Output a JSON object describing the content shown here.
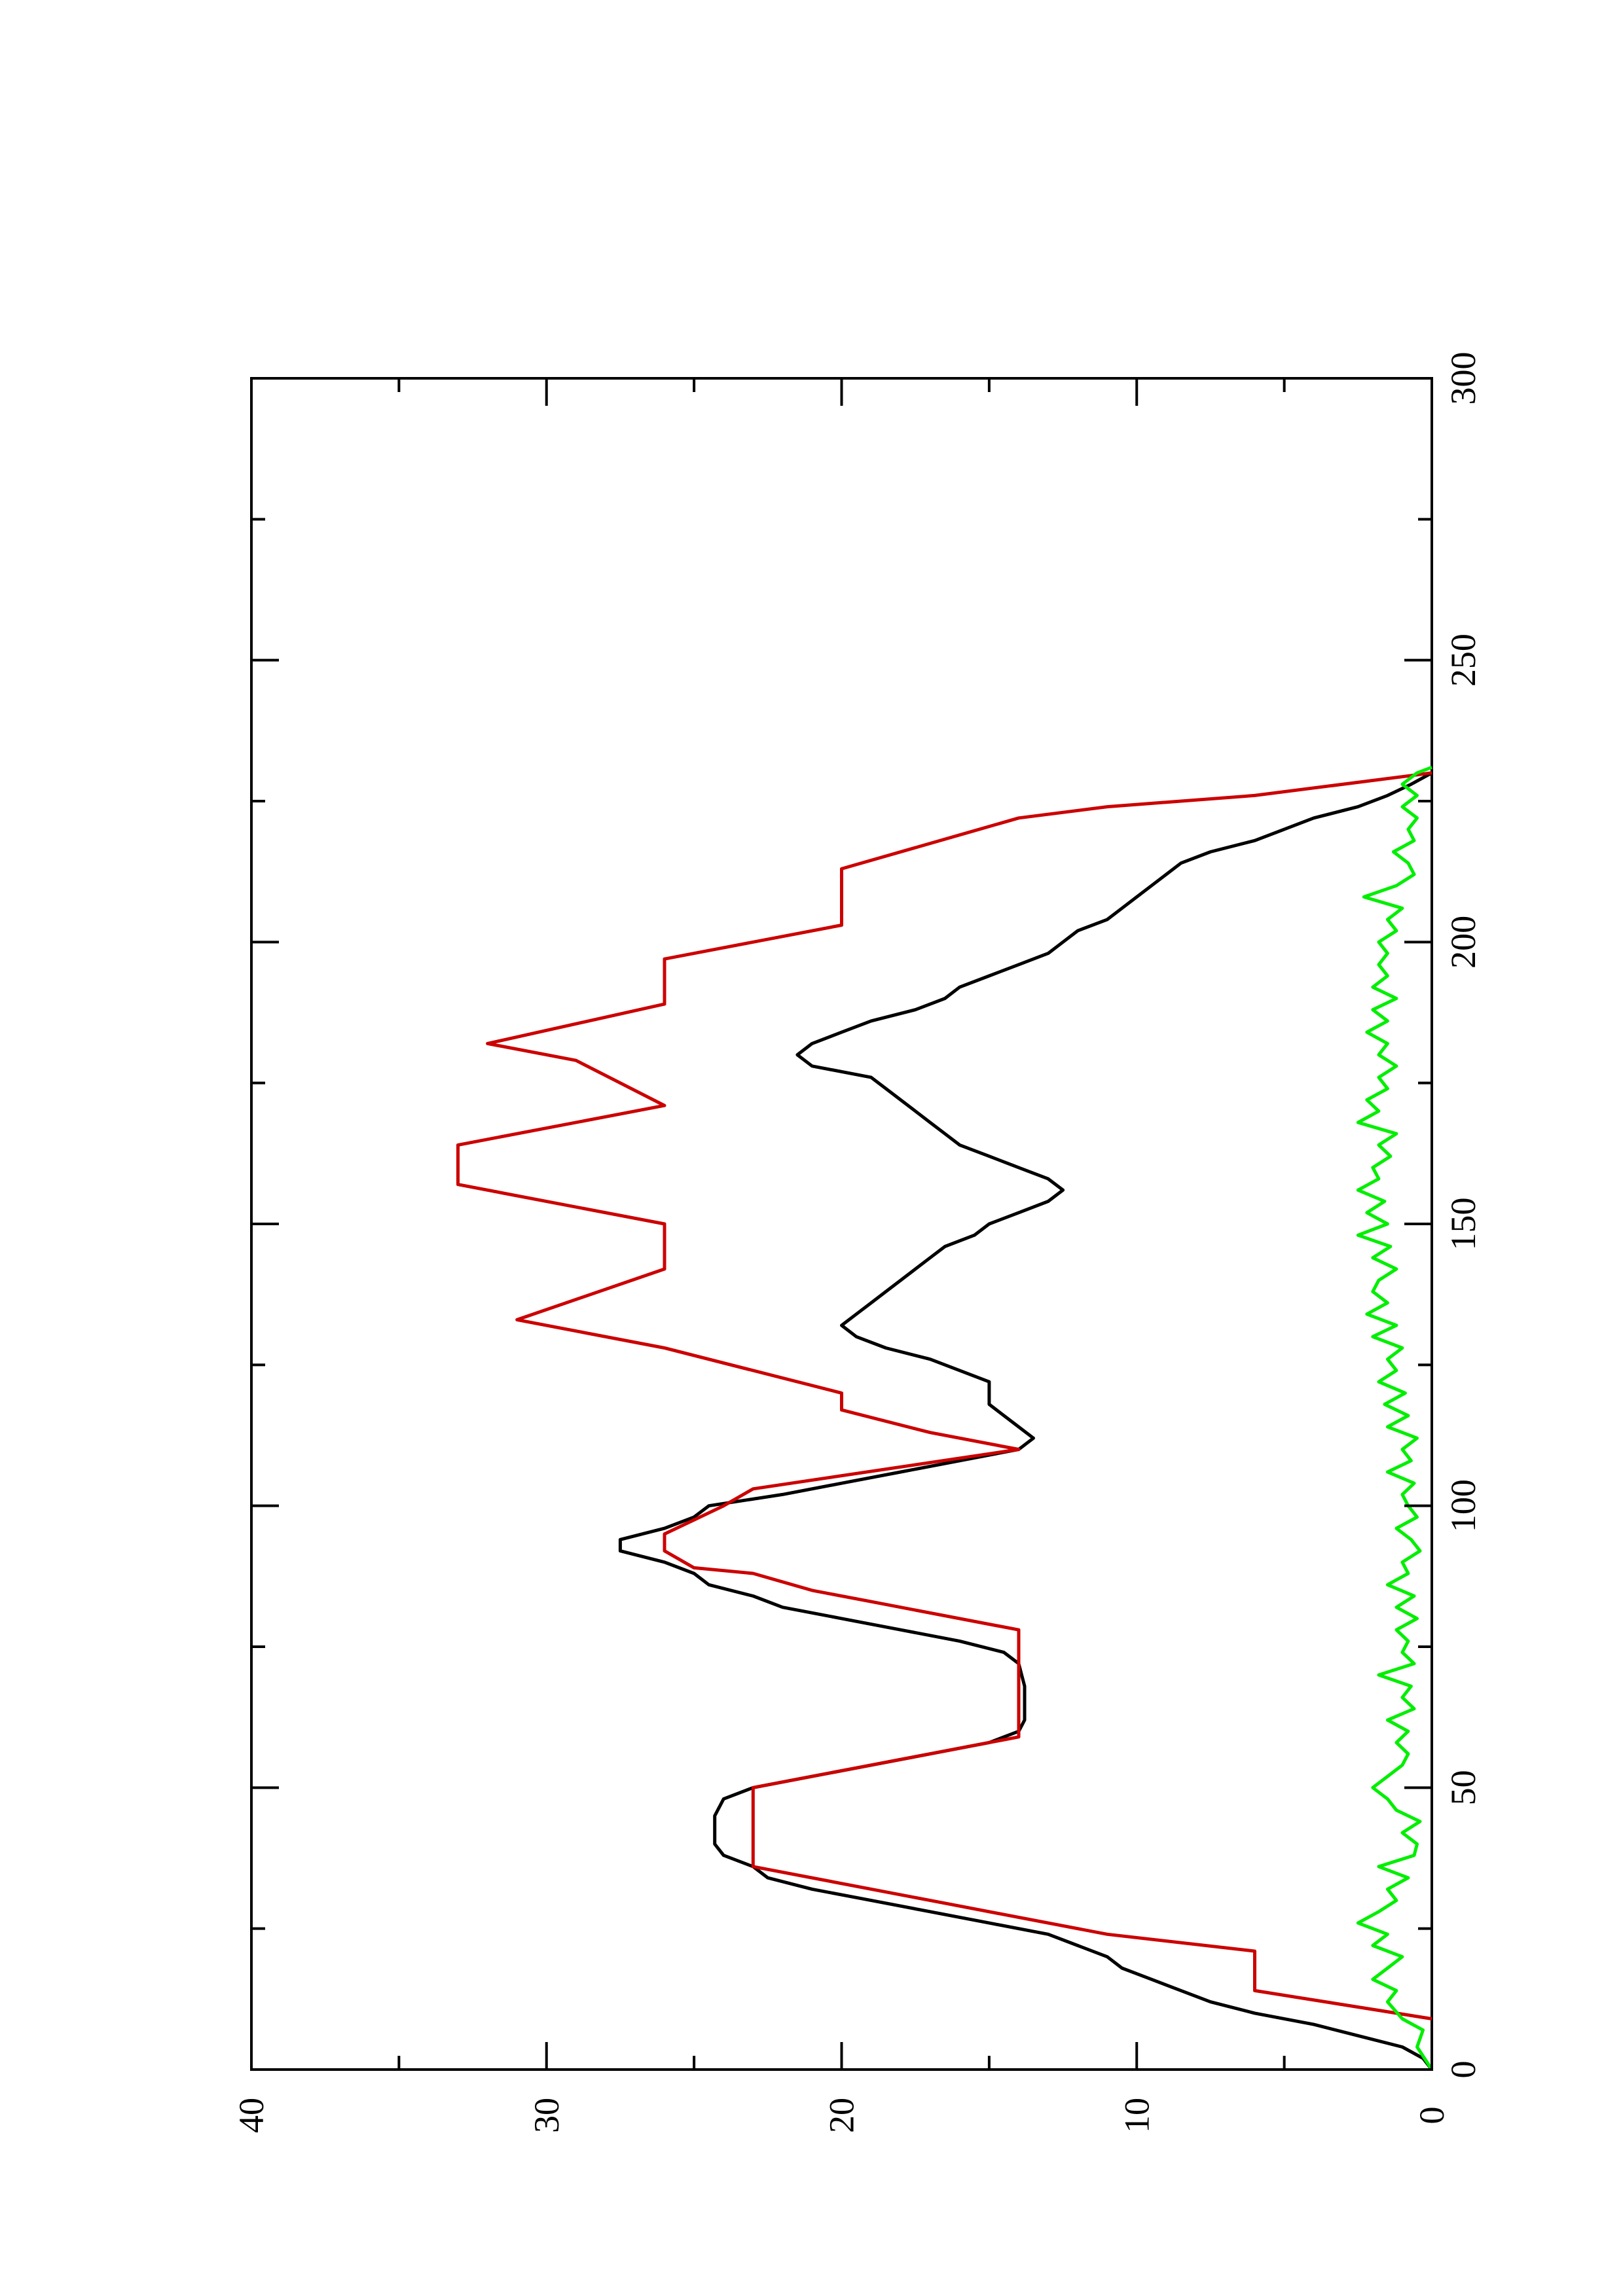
{
  "chart_data": {
    "type": "line",
    "orientation": "rotated-90-ccw",
    "title": "",
    "xlabel": "",
    "ylabel": "",
    "xlim": [
      0,
      300
    ],
    "ylim": [
      0,
      40
    ],
    "x_ticks": [
      0,
      50,
      100,
      150,
      200,
      250,
      300
    ],
    "x_minor_ticks": [
      25,
      75,
      125,
      175,
      225,
      275
    ],
    "y_ticks": [
      0,
      10,
      20,
      30,
      40
    ],
    "y_minor_ticks": [
      5,
      15,
      25,
      35
    ],
    "grid": false,
    "legend": "none",
    "series": [
      {
        "color": "#000000",
        "points": [
          [
            0,
            0
          ],
          [
            2,
            0.3
          ],
          [
            4,
            1
          ],
          [
            6,
            2.5
          ],
          [
            8,
            4
          ],
          [
            10,
            6
          ],
          [
            12,
            7.5
          ],
          [
            14,
            8.5
          ],
          [
            16,
            9.5
          ],
          [
            18,
            10.5
          ],
          [
            20,
            11
          ],
          [
            22,
            12
          ],
          [
            24,
            13
          ],
          [
            26,
            15
          ],
          [
            28,
            17
          ],
          [
            30,
            19
          ],
          [
            32,
            21
          ],
          [
            34,
            22.5
          ],
          [
            36,
            23
          ],
          [
            38,
            24
          ],
          [
            40,
            24.3
          ],
          [
            45,
            24.3
          ],
          [
            48,
            24
          ],
          [
            50,
            23
          ],
          [
            52,
            21
          ],
          [
            54,
            19
          ],
          [
            56,
            17
          ],
          [
            58,
            15
          ],
          [
            60,
            14
          ],
          [
            62,
            13.8
          ],
          [
            65,
            13.8
          ],
          [
            68,
            13.8
          ],
          [
            70,
            13.9
          ],
          [
            72,
            14
          ],
          [
            74,
            14.5
          ],
          [
            76,
            16
          ],
          [
            78,
            18
          ],
          [
            80,
            20
          ],
          [
            82,
            22
          ],
          [
            84,
            23
          ],
          [
            86,
            24.5
          ],
          [
            88,
            25
          ],
          [
            90,
            26
          ],
          [
            92,
            27.5
          ],
          [
            94,
            27.5
          ],
          [
            96,
            26
          ],
          [
            98,
            25
          ],
          [
            100,
            24.5
          ],
          [
            102,
            22
          ],
          [
            104,
            20
          ],
          [
            106,
            18
          ],
          [
            108,
            16
          ],
          [
            110,
            14
          ],
          [
            112,
            13.5
          ],
          [
            114,
            14
          ],
          [
            116,
            14.5
          ],
          [
            118,
            15
          ],
          [
            120,
            15
          ],
          [
            122,
            15
          ],
          [
            124,
            16
          ],
          [
            126,
            17
          ],
          [
            128,
            18.5
          ],
          [
            130,
            19.5
          ],
          [
            132,
            20
          ],
          [
            134,
            19.5
          ],
          [
            136,
            19
          ],
          [
            138,
            18.5
          ],
          [
            140,
            18
          ],
          [
            142,
            17.5
          ],
          [
            144,
            17
          ],
          [
            146,
            16.5
          ],
          [
            148,
            15.5
          ],
          [
            150,
            15
          ],
          [
            152,
            14
          ],
          [
            154,
            13
          ],
          [
            156,
            12.5
          ],
          [
            158,
            13
          ],
          [
            160,
            14
          ],
          [
            162,
            15
          ],
          [
            164,
            16
          ],
          [
            166,
            16.5
          ],
          [
            168,
            17
          ],
          [
            170,
            17.5
          ],
          [
            172,
            18
          ],
          [
            174,
            18.5
          ],
          [
            176,
            19
          ],
          [
            178,
            21
          ],
          [
            180,
            21.5
          ],
          [
            182,
            21
          ],
          [
            184,
            20
          ],
          [
            186,
            19
          ],
          [
            188,
            17.5
          ],
          [
            190,
            16.5
          ],
          [
            192,
            16
          ],
          [
            194,
            15
          ],
          [
            196,
            14
          ],
          [
            198,
            13
          ],
          [
            200,
            12.5
          ],
          [
            202,
            12
          ],
          [
            204,
            11
          ],
          [
            206,
            10.5
          ],
          [
            208,
            10
          ],
          [
            210,
            9.5
          ],
          [
            212,
            9
          ],
          [
            214,
            8.5
          ],
          [
            216,
            7.5
          ],
          [
            218,
            6
          ],
          [
            220,
            5
          ],
          [
            222,
            4
          ],
          [
            224,
            2.5
          ],
          [
            226,
            1.5
          ],
          [
            228,
            0.7
          ],
          [
            230,
            0
          ]
        ]
      },
      {
        "color": "#cc0000",
        "points": [
          [
            9,
            0
          ],
          [
            14,
            6
          ],
          [
            21,
            6
          ],
          [
            24,
            11
          ],
          [
            30,
            17
          ],
          [
            36,
            23
          ],
          [
            50,
            23
          ],
          [
            59,
            14
          ],
          [
            78,
            14
          ],
          [
            83,
            19
          ],
          [
            85,
            21
          ],
          [
            88,
            23
          ],
          [
            89,
            25
          ],
          [
            92,
            26
          ],
          [
            95,
            26
          ],
          [
            100,
            24
          ],
          [
            103,
            23
          ],
          [
            110,
            14
          ],
          [
            113,
            17
          ],
          [
            117,
            20
          ],
          [
            120,
            20
          ],
          [
            128,
            26
          ],
          [
            133,
            31
          ],
          [
            142,
            26
          ],
          [
            150,
            26
          ],
          [
            157,
            33
          ],
          [
            164,
            33
          ],
          [
            171,
            26
          ],
          [
            179,
            29
          ],
          [
            180,
            30
          ],
          [
            182,
            32
          ],
          [
            189,
            26
          ],
          [
            197,
            26
          ],
          [
            203,
            20
          ],
          [
            213,
            20
          ],
          [
            222,
            14
          ],
          [
            224,
            11
          ],
          [
            226,
            6
          ],
          [
            230,
            0
          ]
        ]
      },
      {
        "color": "#00ee00",
        "points": [
          [
            0,
            0
          ],
          [
            4,
            0.5
          ],
          [
            7,
            0.3
          ],
          [
            9,
            1
          ],
          [
            12,
            1.5
          ],
          [
            14,
            1.2
          ],
          [
            16,
            2
          ],
          [
            18,
            1.5
          ],
          [
            20,
            1
          ],
          [
            22,
            2
          ],
          [
            24,
            1.5
          ],
          [
            26,
            2.5
          ],
          [
            28,
            1.8
          ],
          [
            30,
            1.2
          ],
          [
            32,
            1.5
          ],
          [
            34,
            0.8
          ],
          [
            36,
            1.8
          ],
          [
            38,
            0.6
          ],
          [
            40,
            0.5
          ],
          [
            42,
            1
          ],
          [
            44,
            0.4
          ],
          [
            46,
            1.2
          ],
          [
            48,
            1.5
          ],
          [
            50,
            2
          ],
          [
            52,
            1.5
          ],
          [
            54,
            1
          ],
          [
            56,
            0.8
          ],
          [
            58,
            1.2
          ],
          [
            60,
            0.8
          ],
          [
            62,
            1.5
          ],
          [
            64,
            0.6
          ],
          [
            66,
            1
          ],
          [
            68,
            0.7
          ],
          [
            70,
            1.8
          ],
          [
            72,
            0.6
          ],
          [
            74,
            1
          ],
          [
            76,
            0.8
          ],
          [
            78,
            1.2
          ],
          [
            80,
            0.5
          ],
          [
            82,
            1.2
          ],
          [
            84,
            0.6
          ],
          [
            86,
            1.5
          ],
          [
            88,
            0.8
          ],
          [
            90,
            1
          ],
          [
            92,
            0.4
          ],
          [
            94,
            0.7
          ],
          [
            96,
            1.2
          ],
          [
            98,
            0.5
          ],
          [
            100,
            0.8
          ],
          [
            102,
            1
          ],
          [
            104,
            0.6
          ],
          [
            106,
            1.5
          ],
          [
            108,
            0.7
          ],
          [
            110,
            1
          ],
          [
            112,
            0.5
          ],
          [
            114,
            1.5
          ],
          [
            116,
            0.8
          ],
          [
            118,
            1.6
          ],
          [
            120,
            0.9
          ],
          [
            122,
            1.8
          ],
          [
            124,
            1.2
          ],
          [
            126,
            1.5
          ],
          [
            128,
            1
          ],
          [
            130,
            2
          ],
          [
            132,
            1.2
          ],
          [
            134,
            2.2
          ],
          [
            136,
            1.5
          ],
          [
            138,
            2
          ],
          [
            140,
            1.8
          ],
          [
            142,
            1.2
          ],
          [
            144,
            2
          ],
          [
            146,
            1.4
          ],
          [
            148,
            2.5
          ],
          [
            150,
            1.5
          ],
          [
            152,
            2.2
          ],
          [
            154,
            1.6
          ],
          [
            156,
            2.5
          ],
          [
            158,
            1.8
          ],
          [
            160,
            2
          ],
          [
            162,
            1.4
          ],
          [
            164,
            1.8
          ],
          [
            166,
            1.2
          ],
          [
            168,
            2.5
          ],
          [
            170,
            1.8
          ],
          [
            172,
            2.2
          ],
          [
            174,
            1.5
          ],
          [
            176,
            1.8
          ],
          [
            178,
            1.2
          ],
          [
            180,
            1.8
          ],
          [
            182,
            1.5
          ],
          [
            184,
            2.2
          ],
          [
            186,
            1.5
          ],
          [
            188,
            2
          ],
          [
            190,
            1.2
          ],
          [
            192,
            2
          ],
          [
            194,
            1.5
          ],
          [
            196,
            1.8
          ],
          [
            198,
            1.5
          ],
          [
            200,
            1.8
          ],
          [
            202,
            1.2
          ],
          [
            204,
            1.5
          ],
          [
            206,
            1
          ],
          [
            208,
            2.3
          ],
          [
            210,
            1.2
          ],
          [
            212,
            0.6
          ],
          [
            214,
            0.8
          ],
          [
            216,
            1.3
          ],
          [
            218,
            0.6
          ],
          [
            220,
            0.8
          ],
          [
            222,
            0.5
          ],
          [
            224,
            1
          ],
          [
            226,
            0.5
          ],
          [
            228,
            1
          ],
          [
            230,
            0.5
          ],
          [
            231,
            0
          ]
        ]
      }
    ]
  }
}
